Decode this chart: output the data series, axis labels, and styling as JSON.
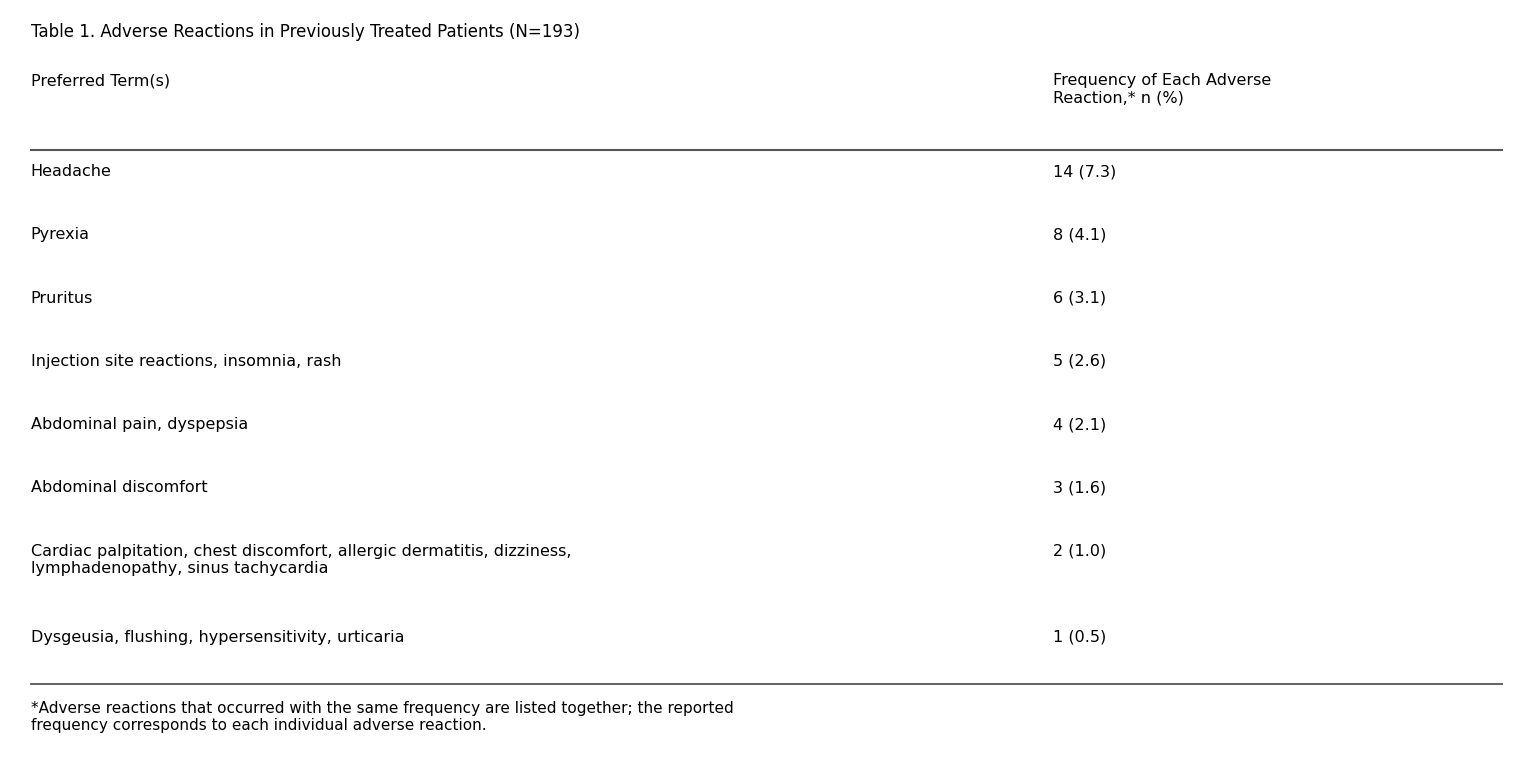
{
  "title": "Table 1. Adverse Reactions in Previously Treated Patients (N=193)",
  "col1_header": "Preferred Term(s)",
  "col2_header": "Frequency of Each Adverse\nReaction,* n (%)",
  "rows": [
    [
      "Headache",
      "14 (7.3)"
    ],
    [
      "Pyrexia",
      "8 (4.1)"
    ],
    [
      "Pruritus",
      "6 (3.1)"
    ],
    [
      "Injection site reactions, insomnia, rash",
      "5 (2.6)"
    ],
    [
      "Abdominal pain, dyspepsia",
      "4 (2.1)"
    ],
    [
      "Abdominal discomfort",
      "3 (1.6)"
    ],
    [
      "Cardiac palpitation, chest discomfort, allergic dermatitis, dizziness,\nlymphadenopathy, sinus tachycardia",
      "2 (1.0)"
    ],
    [
      "Dysgeusia, flushing, hypersensitivity, urticaria",
      "1 (0.5)"
    ]
  ],
  "footnote": "*Adverse reactions that occurred with the same frequency are listed together; the reported\nfrequency corresponds to each individual adverse reaction.",
  "bg_color": "#ffffff",
  "text_color": "#000000",
  "line_color": "#555555",
  "font_size": 11.5,
  "header_font_size": 11.5,
  "title_font_size": 12,
  "col_split": 0.695
}
